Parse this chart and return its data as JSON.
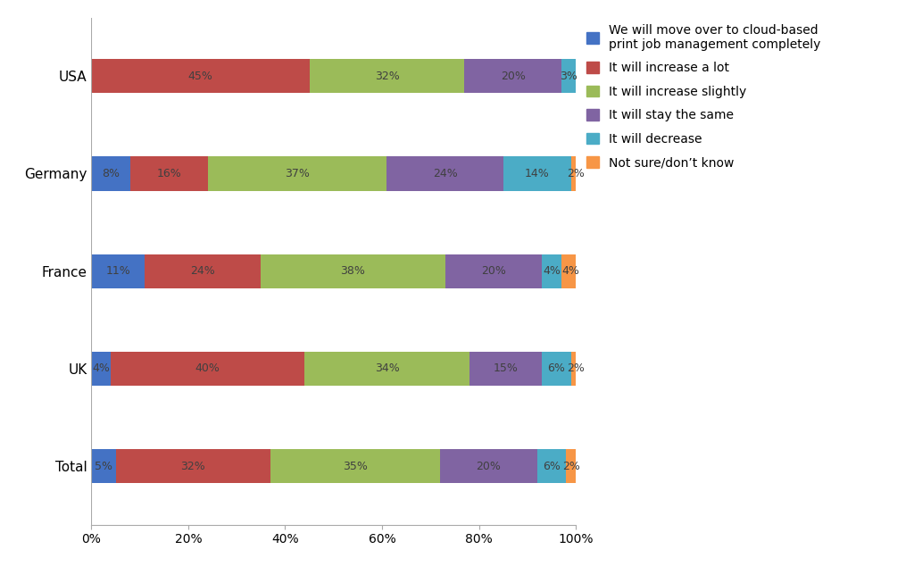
{
  "categories": [
    "USA",
    "Germany",
    "France",
    "UK",
    "Total"
  ],
  "series": {
    "We will move over to cloud-based\nprint job management completely": [
      0,
      8,
      11,
      4,
      5
    ],
    "It will increase a lot": [
      45,
      16,
      24,
      40,
      32
    ],
    "It will increase slightly": [
      32,
      37,
      38,
      34,
      35
    ],
    "It will stay the same": [
      20,
      24,
      20,
      15,
      20
    ],
    "It will decrease": [
      3,
      14,
      4,
      6,
      6
    ],
    "Not sure/don’t know": [
      0,
      2,
      4,
      2,
      2
    ]
  },
  "colors": {
    "We will move over to cloud-based\nprint job management completely": "#4472C4",
    "It will increase a lot": "#BE4B48",
    "It will increase slightly": "#9BBB59",
    "It will stay the same": "#8064A2",
    "It will decrease": "#4BACC6",
    "Not sure/don’t know": "#F79646"
  },
  "legend_labels": [
    "We will move over to cloud-based\nprint job management completely",
    "It will increase a lot",
    "It will increase slightly",
    "It will stay the same",
    "It will decrease",
    "Not sure/don’t know"
  ],
  "background_color": "#FFFFFF",
  "figsize": [
    10.24,
    6.53
  ],
  "dpi": 100
}
